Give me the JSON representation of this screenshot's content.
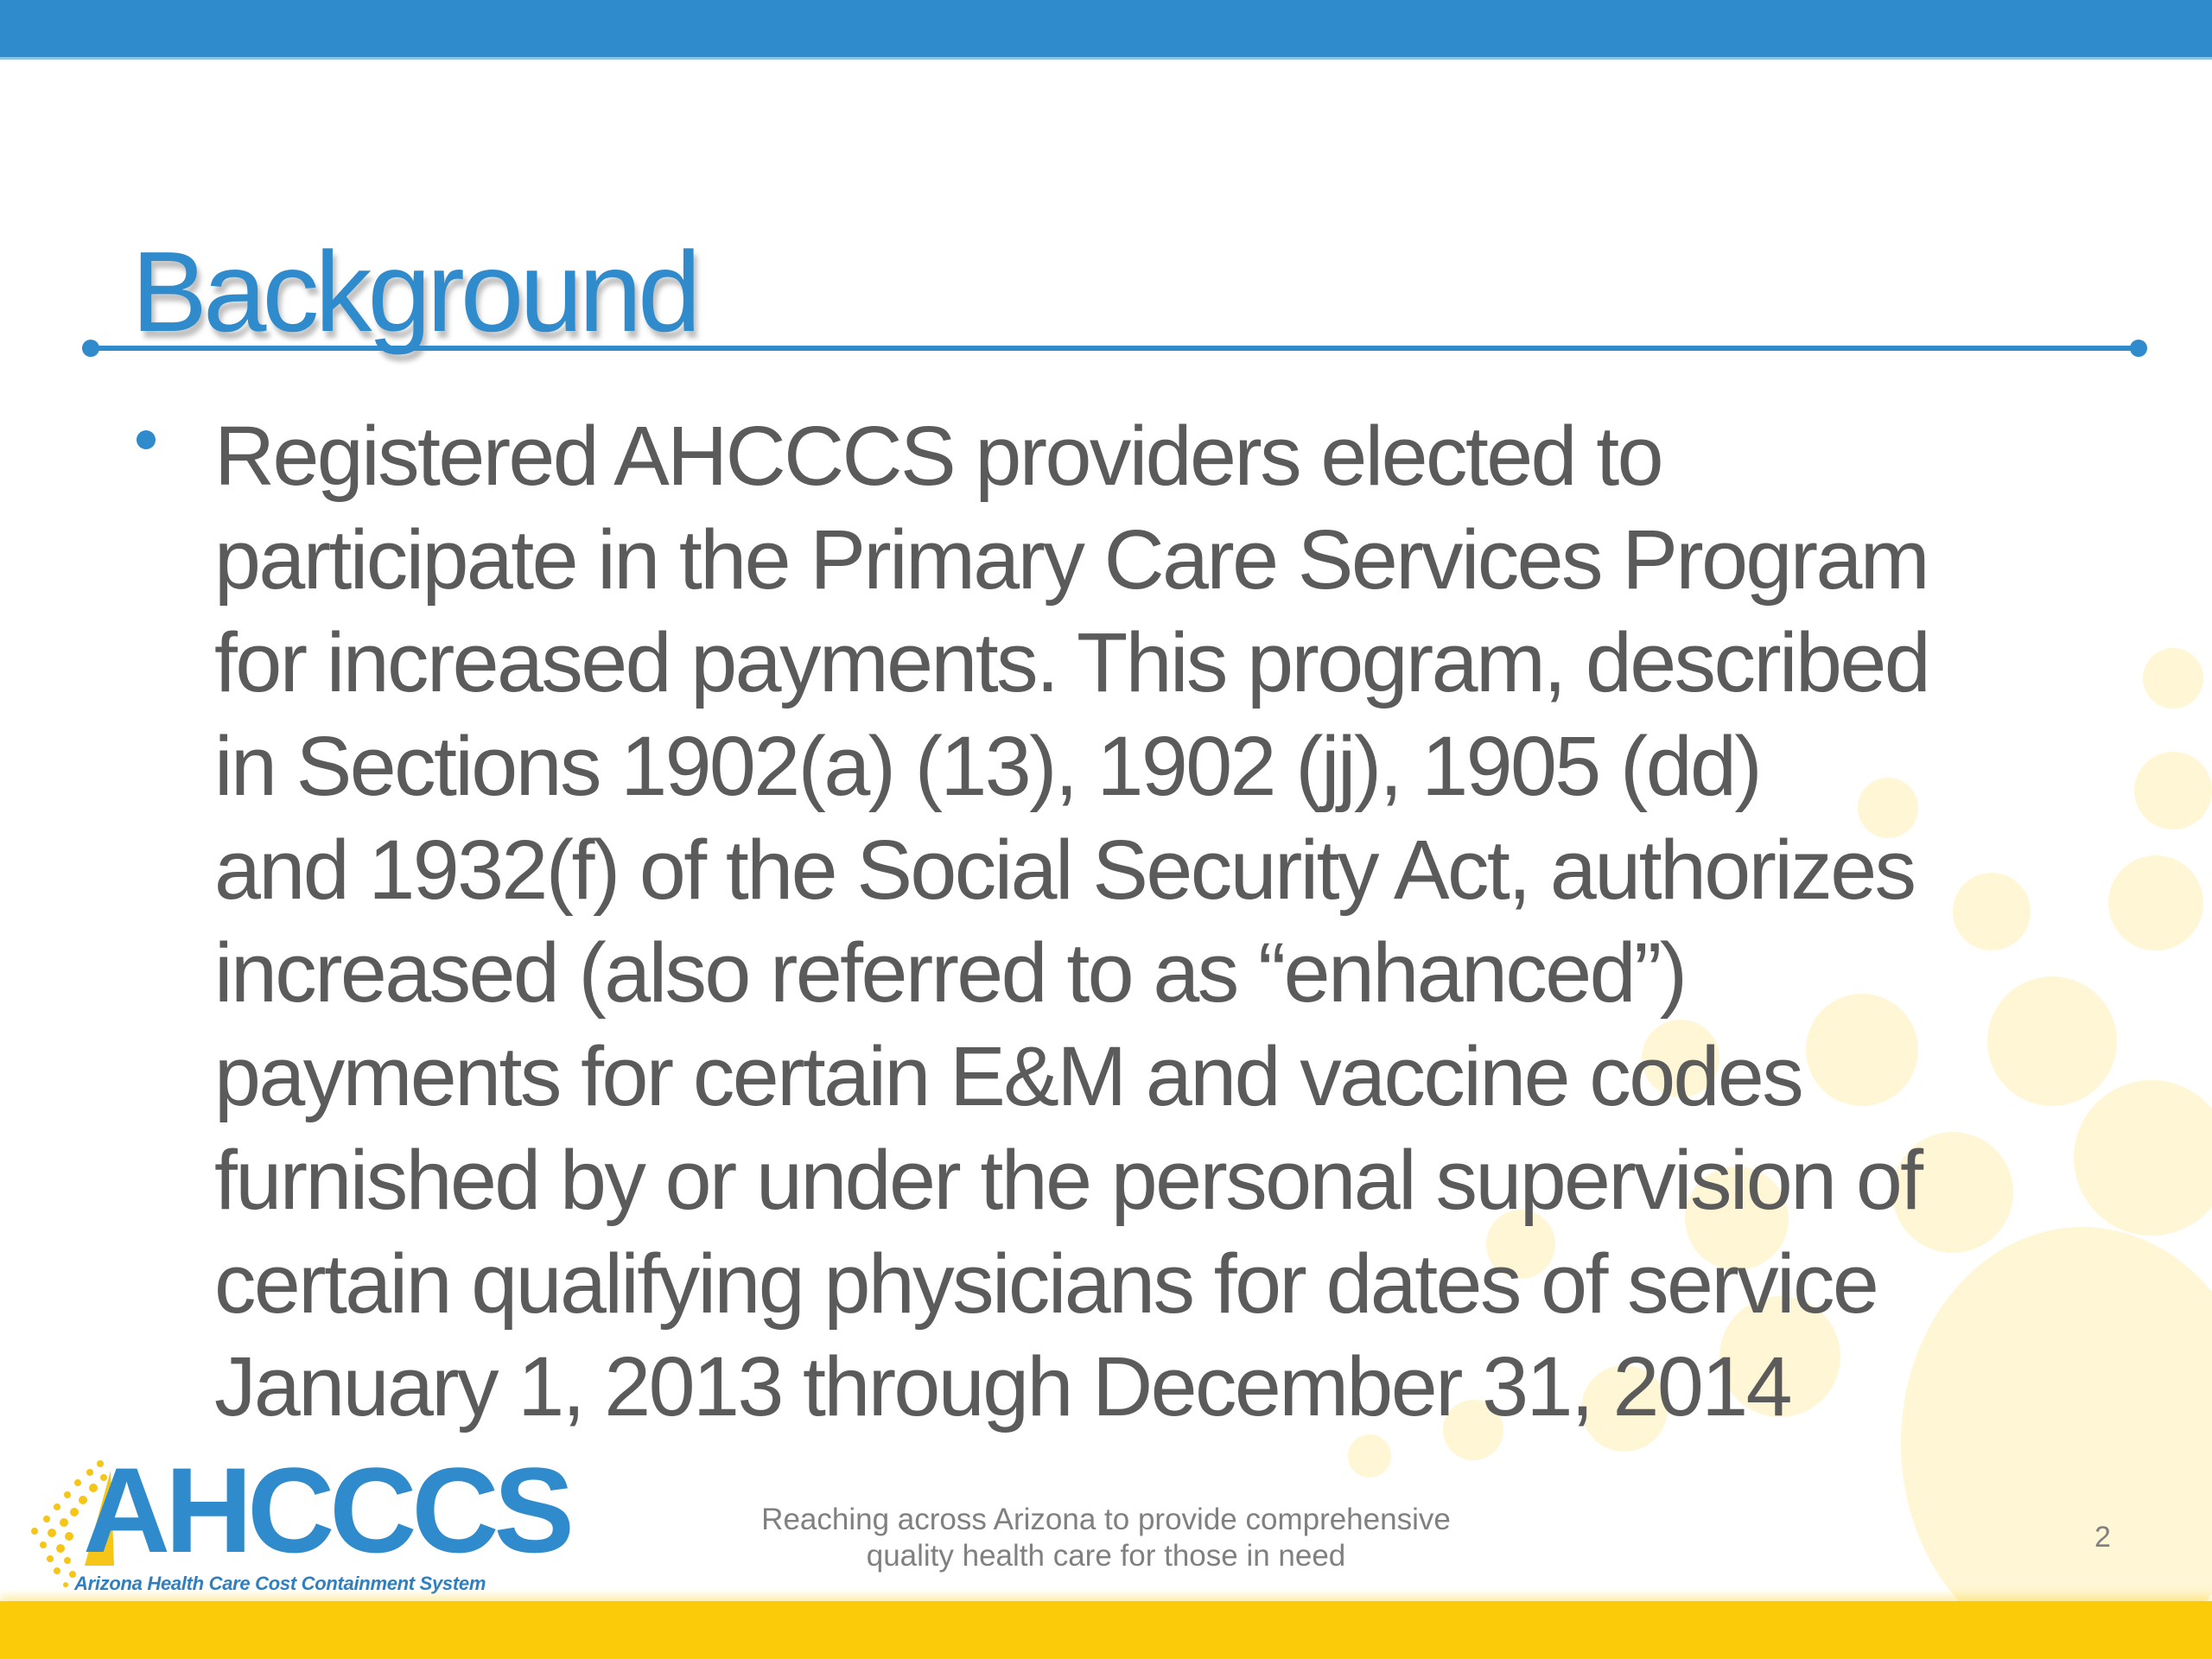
{
  "slide": {
    "title": "Background",
    "bullet_lines": [
      "Registered AHCCCS providers elected to",
      "participate in the Primary Care Services Program",
      "for increased payments. This program, described",
      "in Sections 1902(a) (13), 1902 (jj), 1905 (dd)",
      "and 1932(f) of the Social Security Act, authorizes",
      "increased (also referred to as “enhanced”)",
      "payments for certain E&M and vaccine codes",
      "furnished by or under the personal supervision of",
      "certain qualifying physicians for dates of service",
      "January 1, 2013 through December 31, 2014"
    ]
  },
  "footer": {
    "logo_text": "AHCCCS",
    "logo_subtitle": "Arizona Health Care Cost Containment System",
    "tagline_lines": [
      "Reaching across Arizona to provide comprehensive",
      "quality health care for those in need"
    ],
    "page_number": "2"
  },
  "colors": {
    "accent_blue": "#2F8BCB",
    "accent_yellow": "#FBCB0A",
    "body_text": "#5B5B5B"
  }
}
